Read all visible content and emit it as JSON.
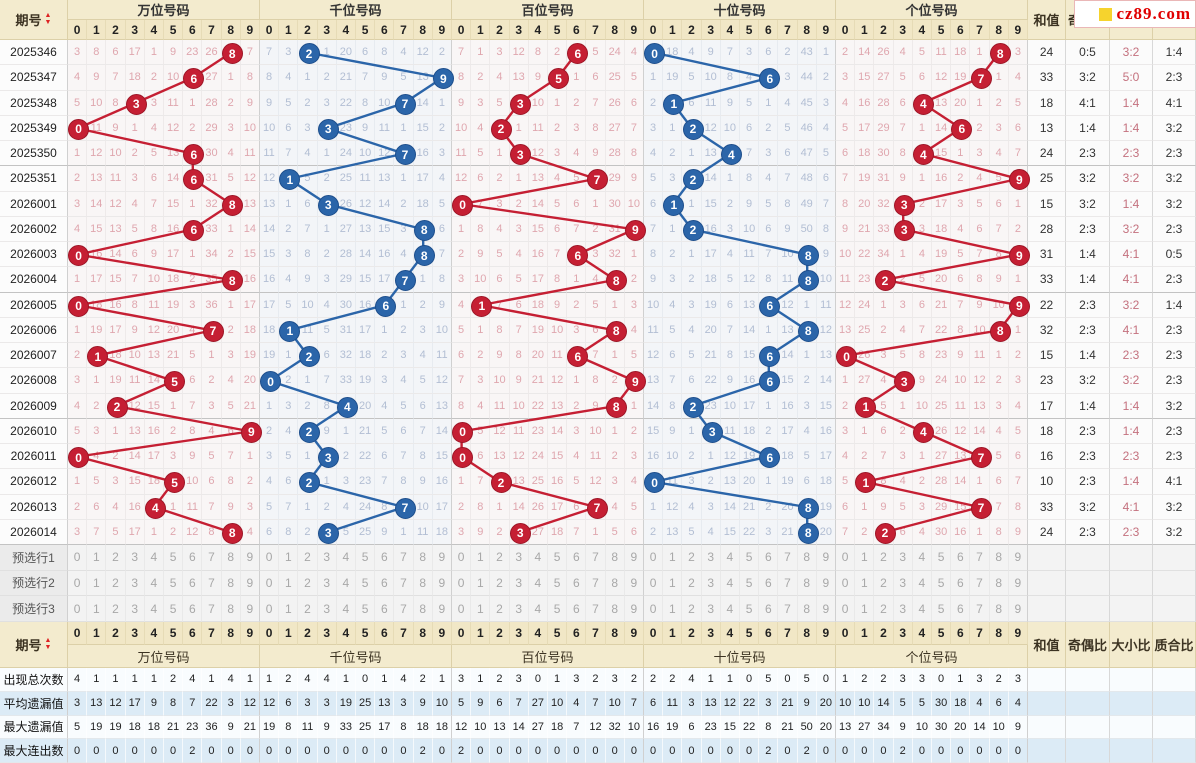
{
  "header": {
    "period_label": "期号",
    "groups": [
      {
        "key": "wan",
        "label": "万位号码"
      },
      {
        "key": "qian",
        "label": "千位号码"
      },
      {
        "key": "bai",
        "label": "百位号码"
      },
      {
        "key": "shi",
        "label": "十位号码"
      },
      {
        "key": "ge",
        "label": "个位号码"
      }
    ],
    "digits": [
      "0",
      "1",
      "2",
      "3",
      "4",
      "5",
      "6",
      "7",
      "8",
      "9"
    ],
    "right_columns": [
      "和值",
      "奇偶比",
      "大小比",
      "质合比"
    ],
    "logo_text": "cz89.com"
  },
  "colors": {
    "red_circle": "#c51f33",
    "red_circle_border": "#9d1526",
    "blue_circle": "#2b65a9",
    "blue_circle_border": "#1d4e8c",
    "miss_red": "#dfa6ae",
    "miss_blue": "#b2bed3",
    "ratio_pink": "#c4717e",
    "header_tan": "#f3ebce",
    "stats_band": "#dcebf6"
  },
  "rows": [
    {
      "period": "2025346",
      "wan": "3 8 6 17 1 9 23 26 H8 7",
      "qian": "7 3 H2 1 20 6 8 4 12 2",
      "bai": "7 1 3 12 8 2 H6 5 24 4",
      "shi": "H0 18 4 9 7 3 6 2 43 1",
      "ge": "2 14 26 4 5 11 18 1 H8 3",
      "he": "24",
      "oe": "0:5",
      "dx": "3:2",
      "zh": "1:4"
    },
    {
      "period": "2025347",
      "wan": "4 9 7 18 2 10 H6 27 1 8",
      "qian": "8 4 1 2 21 7 9 5 13 H9",
      "bai": "8 2 4 13 9 H5 1 6 25 5",
      "shi": "1 19 5 10 8 4 H6 3 44 2",
      "ge": "3 15 27 5 6 12 19 H7 1 4",
      "he": "33",
      "oe": "3:2",
      "dx": "5:0",
      "zh": "2:3"
    },
    {
      "period": "2025348",
      "wan": "5 10 8 H3 3 11 1 28 2 9",
      "qian": "9 5 2 3 22 8 10 H7 14 1",
      "bai": "9 3 5 H3 10 1 2 7 26 6",
      "shi": "2 H1 6 11 9 5 1 4 45 3",
      "ge": "4 16 28 6 H4 13 20 1 2 5",
      "he": "18",
      "oe": "4:1",
      "dx": "1:4",
      "zh": "4:1"
    },
    {
      "period": "2025349",
      "wan": "H0 11 9 1 4 12 2 29 3 10",
      "qian": "10 6 3 H3 23 9 11 1 15 2",
      "bai": "10 4 H2 1 11 2 3 8 27 7",
      "shi": "3 1 H2 12 10 6 2 5 46 4",
      "ge": "5 17 29 7 1 14 H6 2 3 6",
      "he": "13",
      "oe": "1:4",
      "dx": "1:4",
      "zh": "3:2"
    },
    {
      "period": "2025350",
      "wan": "1 12 10 2 5 13 H6 30 4 11",
      "qian": "11 7 4 1 24 10 12 H7 16 3",
      "bai": "11 5 1 H3 12 3 4 9 28 8",
      "shi": "4 2 1 13 H4 7 3 6 47 5",
      "ge": "6 18 30 8 H4 15 1 3 4 7",
      "he": "24",
      "oe": "2:3",
      "dx": "2:3",
      "zh": "2:3"
    },
    {
      "period": "2025351",
      "wan": "2 13 11 3 6 14 H6 31 5 12",
      "qian": "12 H1 5 2 25 11 13 1 17 4",
      "bai": "12 6 2 1 13 4 5 H7 29 9",
      "shi": "5 3 H2 14 1 8 4 7 48 6",
      "ge": "7 19 31 9 1 16 2 4 5 H9",
      "he": "25",
      "oe": "3:2",
      "dx": "3:2",
      "zh": "3:2"
    },
    {
      "period": "2026001",
      "wan": "3 14 12 4 7 15 1 32 H8 13",
      "qian": "13 1 6 H3 26 12 14 2 18 5",
      "bai": "H0 7 3 2 14 5 6 1 30 10",
      "shi": "6 H1 1 15 2 9 5 8 49 7",
      "ge": "8 20 32 H3 2 17 3 5 6 1",
      "he": "15",
      "oe": "3:2",
      "dx": "1:4",
      "zh": "3:2"
    },
    {
      "period": "2026002",
      "wan": "4 15 13 5 8 16 H6 33 1 14",
      "qian": "14 2 7 1 27 13 15 3 H8 6",
      "bai": "1 8 4 3 15 6 7 2 31 H9",
      "shi": "7 1 H2 16 3 10 6 9 50 8",
      "ge": "9 21 33 H3 3 18 4 6 7 2",
      "he": "28",
      "oe": "2:3",
      "dx": "3:2",
      "zh": "2:3"
    },
    {
      "period": "2026003",
      "wan": "H0 16 14 6 9 17 1 34 2 15",
      "qian": "15 3 8 2 28 14 16 4 H8 7",
      "bai": "2 9 5 4 16 7 H6 3 32 1",
      "shi": "8 2 1 17 4 11 7 10 H8 9",
      "ge": "10 22 34 1 4 19 5 7 8 H9",
      "he": "31",
      "oe": "1:4",
      "dx": "4:1",
      "zh": "0:5"
    },
    {
      "period": "2026004",
      "wan": "1 17 15 7 10 18 2 35 H8 16",
      "qian": "16 4 9 3 29 15 17 H7 1 8",
      "bai": "3 10 6 5 17 8 1 4 H8 2",
      "shi": "9 3 2 18 5 12 8 11 H8 10",
      "ge": "11 23 H2 2 5 20 6 8 9 1",
      "he": "33",
      "oe": "1:4",
      "dx": "4:1",
      "zh": "2:3"
    },
    {
      "period": "2026005",
      "wan": "H0 18 16 8 11 19 3 36 1 17",
      "qian": "17 5 10 4 30 16 H6 1 2 9",
      "bai": "4 H1 7 6 18 9 2 5 1 3",
      "shi": "10 4 3 19 6 13 H6 12 1 11",
      "ge": "12 24 1 3 6 21 7 9 10 H9",
      "he": "22",
      "oe": "2:3",
      "dx": "3:2",
      "zh": "1:4"
    },
    {
      "period": "2026006",
      "wan": "1 19 17 9 12 20 4 H7 2 18",
      "qian": "18 H1 11 5 31 17 1 2 3 10",
      "bai": "5 1 8 7 19 10 3 6 H8 4",
      "shi": "11 5 4 20 7 14 1 13 H8 12",
      "ge": "13 25 2 4 7 22 8 10 H8 1",
      "he": "32",
      "oe": "2:3",
      "dx": "4:1",
      "zh": "2:3"
    },
    {
      "period": "2026007",
      "wan": "2 H1 18 10 13 21 5 1 3 19",
      "qian": "19 1 H2 6 32 18 2 3 4 11",
      "bai": "6 2 9 8 20 11 H6 7 1 5",
      "shi": "12 6 5 21 8 15 H6 14 1 13",
      "ge": "H0 26 3 5 8 23 9 11 1 2",
      "he": "15",
      "oe": "1:4",
      "dx": "2:3",
      "zh": "2:3"
    },
    {
      "period": "2026008",
      "wan": "3 1 19 11 14 H5 6 2 4 20",
      "qian": "H0 2 1 7 33 19 3 4 5 12",
      "bai": "7 3 10 9 21 12 1 8 2 H9",
      "shi": "13 7 6 22 9 16 H6 15 2 14",
      "ge": "1 27 4 H3 9 24 10 12 2 3",
      "he": "23",
      "oe": "3:2",
      "dx": "3:2",
      "zh": "2:3"
    },
    {
      "period": "2026009",
      "wan": "4 2 H2 12 15 1 7 3 5 21",
      "qian": "1 3 2 8 H4 20 4 5 6 13",
      "bai": "8 4 11 10 22 13 2 9 H8 1",
      "shi": "14 8 H2 23 10 17 1 16 3 15",
      "ge": "2 H1 5 1 10 25 11 13 3 4",
      "he": "17",
      "oe": "1:4",
      "dx": "1:4",
      "zh": "3:2"
    },
    {
      "period": "2026010",
      "wan": "5 3 1 13 16 2 8 4 6 H9",
      "qian": "2 4 H2 9 1 21 5 6 7 14",
      "bai": "H0 5 12 11 23 14 3 10 1 2",
      "shi": "15 9 1 H3 11 18 2 17 4 16",
      "ge": "3 1 6 2 H4 26 12 14 4 5",
      "he": "18",
      "oe": "2:3",
      "dx": "1:4",
      "zh": "2:3"
    },
    {
      "period": "2026011",
      "wan": "H0 4 2 14 17 3 9 5 7 1",
      "qian": "3 5 1 H3 2 22 6 7 8 15",
      "bai": "H0 6 13 12 24 15 4 11 2 3",
      "shi": "16 10 2 1 12 19 H6 18 5 17",
      "ge": "4 2 7 3 1 27 13 H7 5 6",
      "he": "16",
      "oe": "2:3",
      "dx": "2:3",
      "zh": "2:3"
    },
    {
      "period": "2026012",
      "wan": "1 5 3 15 18 H5 10 6 8 2",
      "qian": "4 6 H2 1 3 23 7 8 9 16",
      "bai": "1 7 H2 13 25 16 5 12 3 4",
      "shi": "H0 11 3 2 13 20 1 19 6 18",
      "ge": "5 H1 8 4 2 28 14 1 6 7",
      "he": "10",
      "oe": "2:3",
      "dx": "1:4",
      "zh": "4:1"
    },
    {
      "period": "2026013",
      "wan": "2 6 4 16 H4 1 11 7 9 3",
      "qian": "5 7 1 2 4 24 8 H7 10 17",
      "bai": "2 8 1 14 26 17 6 H7 4 5",
      "shi": "1 12 4 3 14 21 2 20 H8 19",
      "ge": "6 1 9 5 3 29 15 H7 7 8",
      "he": "33",
      "oe": "3:2",
      "dx": "4:1",
      "zh": "3:2"
    },
    {
      "period": "2026014",
      "wan": "3 7 5 17 1 2 12 8 H8 4",
      "qian": "6 8 2 H3 5 25 9 1 11 18",
      "bai": "3 9 2 H3 27 18 7 1 5 6",
      "shi": "2 13 5 4 15 22 3 21 H8 20",
      "ge": "7 2 H2 6 4 30 16 1 8 9",
      "he": "24",
      "oe": "2:3",
      "dx": "2:3",
      "zh": "3:2"
    }
  ],
  "preselect_rows": [
    {
      "label": "预选行1",
      "digits": "0 1 2 3 4 5 6 7 8 9"
    },
    {
      "label": "预选行2",
      "digits": "0 1 2 3 4 5 6 7 8 9"
    },
    {
      "label": "预选行3",
      "digits": "0 1 2 3 4 5 6 7 8 9"
    }
  ],
  "stats_rows": [
    {
      "label": "出现总次数",
      "wan": "4 1 1 1 1 2 4 1 4 1",
      "qian": "1 2 4 4 1 0 1 4 2 1",
      "bai": "3 1 2 3 0 1 3 2 3 2",
      "shi": "2 2 4 1 1 0 5 0 5 0",
      "ge": "1 2 2 3 3 0 1 3 2 3"
    },
    {
      "label": "平均遗漏值",
      "wan": "3 13 12 17 9 8 7 22 3 12",
      "qian": "12 6 3 3 19 25 13 3 9 10",
      "bai": "5 9 6 7 27 10 4 7 10 7",
      "shi": "6 11 3 13 12 22 3 21 9 20",
      "ge": "10 10 14 5 5 30 18 4 6 4"
    },
    {
      "label": "最大遗漏值",
      "wan": "5 19 19 18 18 21 23 36 9 21",
      "qian": "19 8 11 9 33 25 17 8 18 18",
      "bai": "12 10 13 14 27 18 7 12 32 10",
      "shi": "16 19 6 23 15 22 8 21 50 20",
      "ge": "13 27 34 9 10 30 20 14 10 9"
    },
    {
      "label": "最大连出数",
      "wan": "0 0 0 0 0 0 2 0 0 0",
      "qian": "0 0 0 0 0 0 0 0 2 0",
      "bai": "2 0 0 0 0 0 0 0 0 0",
      "shi": "0 0 0 0 0 0 2 0 2 0",
      "ge": "0 0 0 2 0 0 0 0 0 0"
    }
  ]
}
